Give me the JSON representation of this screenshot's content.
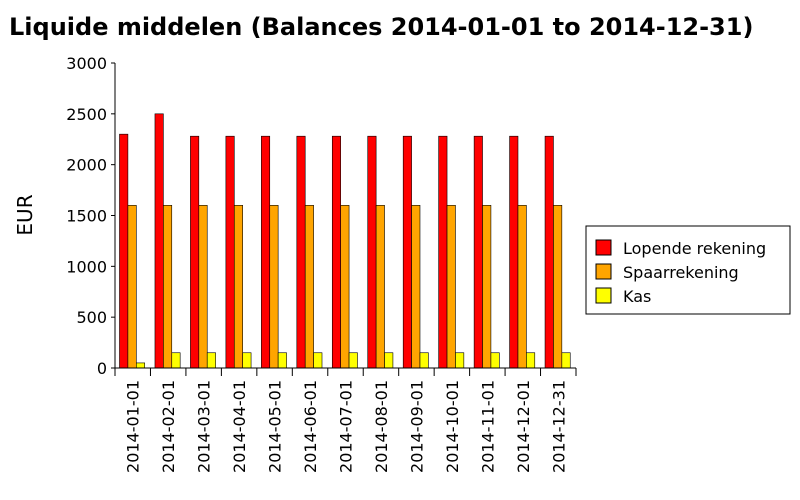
{
  "chart_data": {
    "type": "bar",
    "title": "Liquide middelen (Balances 2014-01-01 to 2014-12-31)",
    "ylabel": "EUR",
    "xlabel": "",
    "ylim": [
      0,
      3000
    ],
    "yticks": [
      0,
      500,
      1000,
      1500,
      2000,
      2500,
      3000
    ],
    "categories": [
      "2014-01-01",
      "2014-02-01",
      "2014-03-01",
      "2014-04-01",
      "2014-05-01",
      "2014-06-01",
      "2014-07-01",
      "2014-08-01",
      "2014-09-01",
      "2014-10-01",
      "2014-11-01",
      "2014-12-01",
      "2014-12-31"
    ],
    "series": [
      {
        "name": "Lopende rekening",
        "color": "#ff0000",
        "values": [
          2300,
          2500,
          2280,
          2280,
          2280,
          2280,
          2280,
          2280,
          2280,
          2280,
          2280,
          2280,
          2280
        ]
      },
      {
        "name": "Spaarrekening",
        "color": "#ffa500",
        "values": [
          1600,
          1600,
          1600,
          1600,
          1600,
          1600,
          1600,
          1600,
          1600,
          1600,
          1600,
          1600,
          1600
        ]
      },
      {
        "name": "Kas",
        "color": "#ffff00",
        "values": [
          50,
          150,
          150,
          150,
          150,
          150,
          150,
          150,
          150,
          150,
          150,
          150,
          150
        ]
      }
    ],
    "legend_position": "right",
    "grid": false
  }
}
